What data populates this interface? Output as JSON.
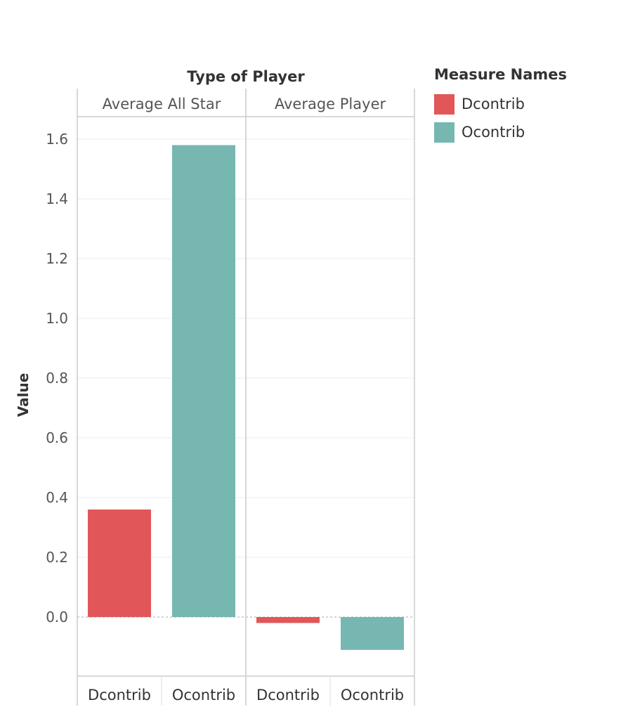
{
  "chart_data": {
    "type": "bar",
    "column_header": "Type of Player",
    "panels": [
      "Average All Star",
      "Average Player"
    ],
    "categories": [
      "Dcontrib",
      "Ocontrib"
    ],
    "series": [
      {
        "name": "Dcontrib",
        "color": "#e15759",
        "values": [
          0.36,
          -0.02
        ]
      },
      {
        "name": "Ocontrib",
        "color": "#76b7b2",
        "values": [
          1.58,
          -0.11
        ]
      }
    ],
    "ylabel": "Value",
    "ylim": [
      -0.2,
      1.7
    ],
    "yticks": [
      "0.0",
      "0.2",
      "0.4",
      "0.6",
      "0.8",
      "1.0",
      "1.2",
      "1.4",
      "1.6"
    ],
    "grid": true,
    "legend_title": "Measure Names",
    "legend_position": "right"
  }
}
